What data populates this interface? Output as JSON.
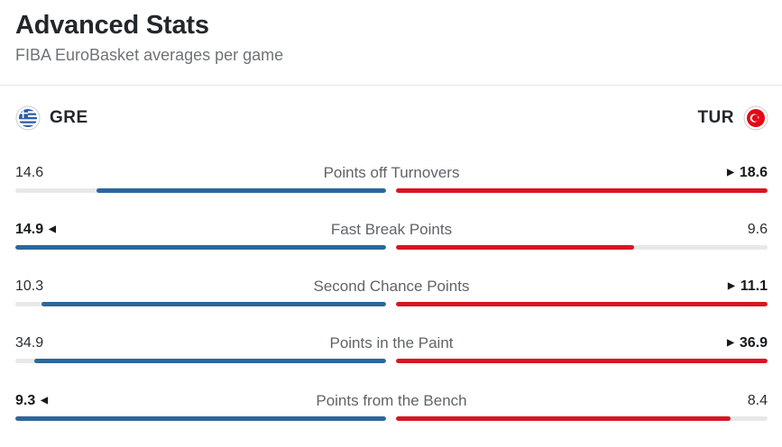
{
  "title": "Advanced Stats",
  "subtitle": "FIBA EuroBasket averages per game",
  "home": {
    "name": "GRE",
    "flag_icon": "greece-flag-icon",
    "color": "#2c679b"
  },
  "away": {
    "name": "TUR",
    "flag_icon": "turkey-flag-icon",
    "color": "#d81523"
  },
  "stats": [
    {
      "label": "Points off Turnovers",
      "home": "14.6",
      "away": "18.6",
      "home_share": 0.78,
      "away_share": 1.0,
      "leader": "away"
    },
    {
      "label": "Fast Break Points",
      "home": "14.9",
      "away": "9.6",
      "home_share": 1.0,
      "away_share": 0.64,
      "leader": "home"
    },
    {
      "label": "Second Chance Points",
      "home": "10.3",
      "away": "11.1",
      "home_share": 0.93,
      "away_share": 1.0,
      "leader": "away"
    },
    {
      "label": "Points in the Paint",
      "home": "34.9",
      "away": "36.9",
      "home_share": 0.95,
      "away_share": 1.0,
      "leader": "away"
    },
    {
      "label": "Points from the Bench",
      "home": "9.3",
      "away": "8.4",
      "home_share": 1.0,
      "away_share": 0.9,
      "leader": "home"
    }
  ]
}
